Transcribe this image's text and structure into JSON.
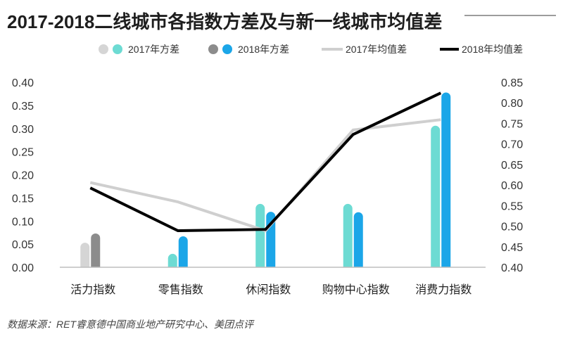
{
  "chart_data": {
    "type": "bar",
    "title": "2017-2018二线城市各指数方差及与新一线城市均值差",
    "categories": [
      "活力指数",
      "零售指数",
      "休闲指数",
      "购物中心指数",
      "消费力指数"
    ],
    "series": [
      {
        "name": "2017年方差",
        "type": "bar",
        "axis": "left",
        "values": [
          0.053,
          0.029,
          0.137,
          0.137,
          0.306
        ],
        "colors": [
          "#d5d5d5",
          "#6ddbd3",
          "#6ddbd3",
          "#6ddbd3",
          "#6ddbd3"
        ]
      },
      {
        "name": "2018年方差",
        "type": "bar",
        "axis": "left",
        "values": [
          0.073,
          0.067,
          0.12,
          0.119,
          0.378
        ],
        "colors": [
          "#8c8c8c",
          "#1ba6e8",
          "#1ba6e8",
          "#1ba6e8",
          "#1ba6e8"
        ]
      },
      {
        "name": "2017年均值差",
        "type": "line",
        "axis": "right",
        "values": [
          0.606,
          0.559,
          0.489,
          0.734,
          0.759
        ],
        "color": "#cfcfcf"
      },
      {
        "name": "2018年均值差",
        "type": "line",
        "axis": "right",
        "values": [
          0.593,
          0.489,
          0.492,
          0.723,
          0.824
        ],
        "color": "#000000"
      }
    ],
    "y_left": {
      "ylim": [
        0,
        0.4
      ],
      "ticks": [
        "0.40",
        "0.35",
        "0.30",
        "0.25",
        "0.20",
        "0.15",
        "0.10",
        "0.05",
        "0.00"
      ]
    },
    "y_right": {
      "ylim": [
        0.4,
        0.85
      ],
      "ticks": [
        "0.85",
        "0.80",
        "0.75",
        "0.70",
        "0.65",
        "0.60",
        "0.55",
        "0.50",
        "0.45",
        "0.40"
      ]
    },
    "grid": false,
    "legend": {
      "position": "top-right",
      "items": [
        {
          "label": "2017年方差",
          "swatches": [
            "#d5d5d5",
            "#6ddbd3"
          ]
        },
        {
          "label": "2018年方差",
          "swatches": [
            "#8c8c8c",
            "#1ba6e8"
          ]
        },
        {
          "label": "2017年均值差",
          "swatches": [
            "#cfcfcf"
          ]
        },
        {
          "label": "2018年均值差",
          "swatches": [
            "#000000"
          ]
        }
      ]
    },
    "source": "数据来源：RET睿意德中国商业地产研究中心、美团点评"
  }
}
